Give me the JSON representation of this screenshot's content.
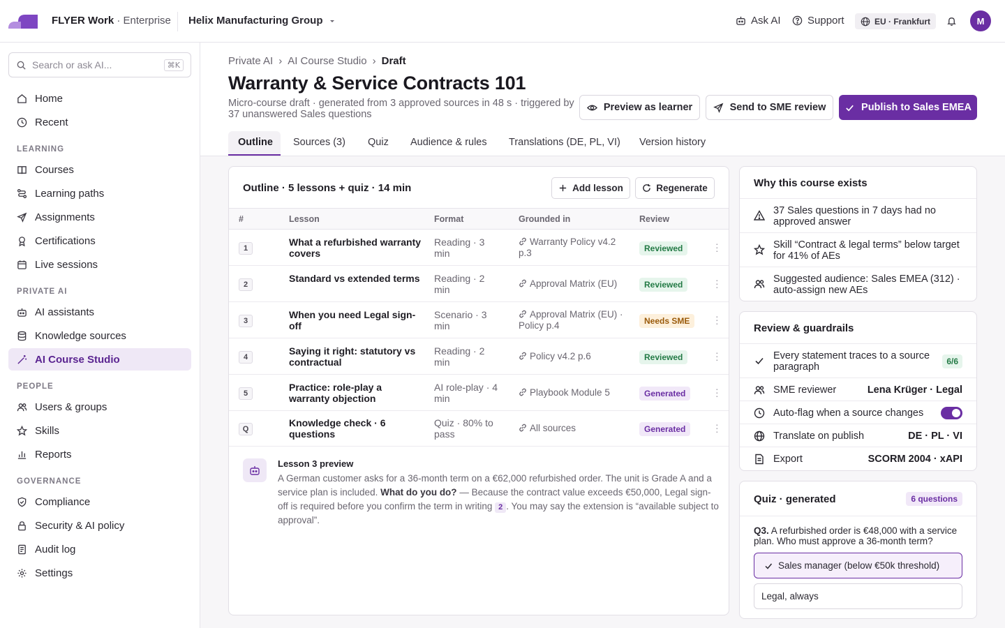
{
  "topbar": {
    "brand_name": "FLYER Work",
    "brand_edition": " · Enterprise",
    "org": "Helix Manufacturing Group",
    "ask_ai": "Ask AI",
    "support": "Support",
    "region": "EU · Frankfurt",
    "avatar": "M"
  },
  "sidebar": {
    "search_placeholder": "Search or ask AI...",
    "search_shortcut": "⌘K",
    "items": {
      "home": "Home",
      "recent": "Recent",
      "section_learning": "LEARNING",
      "courses": "Courses",
      "paths": "Learning paths",
      "assignments": "Assignments",
      "certifications": "Certifications",
      "live": "Live sessions",
      "section_private": "PRIVATE AI",
      "assistants": "AI assistants",
      "knowledge": "Knowledge sources",
      "studio": "AI Course Studio",
      "section_people": "PEOPLE",
      "users": "Users & groups",
      "skills": "Skills",
      "reports": "Reports",
      "section_governance": "GOVERNANCE",
      "compliance": "Compliance",
      "security": "Security & AI policy",
      "audit": "Audit log",
      "settings": "Settings"
    }
  },
  "header": {
    "crumb1": "Private AI",
    "crumb2": "AI Course Studio",
    "crumb3": "Draft",
    "title": "Warranty & Service Contracts 101",
    "subtitle": "Micro-course draft · generated from 3 approved sources in 48 s · triggered by 37 unanswered Sales questions",
    "preview_btn": "Preview as learner",
    "sme_btn": "Send to SME review",
    "publish_btn": "Publish to Sales EMEA"
  },
  "tabs": {
    "outline": "Outline",
    "sources": "Sources (3)",
    "quiz": "Quiz",
    "audience": "Audience & rules",
    "translations": "Translations (DE, PL, VI)",
    "history": "Version history"
  },
  "outline": {
    "title": "Outline · 5 lessons + quiz · 14 min",
    "add_lesson": "Add lesson",
    "regenerate": "Regenerate",
    "columns": {
      "num": "#",
      "lesson": "Lesson",
      "format": "Format",
      "grounded": "Grounded in",
      "review": "Review"
    },
    "rows": [
      {
        "num": "1",
        "lesson": "What a refurbished warranty covers",
        "format": "Reading · 3 min",
        "grounded": "Warranty Policy v4.2 p.3",
        "review": "Reviewed"
      },
      {
        "num": "2",
        "lesson": "Standard vs extended terms",
        "format": "Reading · 2 min",
        "grounded": "Approval Matrix (EU)",
        "review": "Reviewed"
      },
      {
        "num": "3",
        "lesson": "When you need Legal sign-off",
        "format": "Scenario · 3 min",
        "grounded": "Approval Matrix (EU) · Policy p.4",
        "review": "Needs SME"
      },
      {
        "num": "4",
        "lesson": "Saying it right: statutory vs contractual",
        "format": "Reading · 2 min",
        "grounded": "Policy v4.2 p.6",
        "review": "Reviewed"
      },
      {
        "num": "5",
        "lesson": "Practice: role-play a warranty objection",
        "format": "AI role-play · 4 min",
        "grounded": "Playbook Module 5",
        "review": "Generated"
      },
      {
        "num": "Q",
        "lesson": "Knowledge check · 6 questions",
        "format": "Quiz · 80% to pass",
        "grounded": "All sources",
        "review": "Generated"
      }
    ],
    "preview_title": "Lesson 3 preview",
    "preview_part1": "A German customer asks for a 36-month term on a €62,000 refurbished order. The unit is Grade A and a service plan is included. ",
    "preview_bold": "What do you do?",
    "preview_part2": " — Because the contract value exceeds €50,000, Legal sign-off is required before you confirm the term in writing ",
    "preview_cite": "2",
    "preview_part3": ". You may say the extension is “available subject to approval”."
  },
  "why": {
    "title": "Why this course exists",
    "item1": "37 Sales questions in 7 days had no approved answer",
    "item2": "Skill “Contract & legal terms” below target for 41% of AEs",
    "item3": "Suggested audience: Sales EMEA (312) · auto-assign new AEs"
  },
  "review": {
    "title": "Review & guardrails",
    "trace": "Every statement traces to a source paragraph",
    "trace_count": "6/6",
    "sme_label": "SME reviewer",
    "sme_value": "Lena Krüger · Legal",
    "autoflag": "Auto-flag when a source changes",
    "autoflag_on": true,
    "translate_label": "Translate on publish",
    "translate_value": "DE · PL · VI",
    "export_label": "Export",
    "export_value": "SCORM 2004 · xAPI"
  },
  "quiz": {
    "title": "Quiz · generated",
    "badge": "6 questions",
    "qnum": "Q3.",
    "question": " A refurbished order is €48,000 with a service plan. Who must approve a 36-month term?",
    "opt1": "Sales manager (below €50k threshold)",
    "opt2": "Legal, always"
  },
  "colors": {
    "accent": "#6a2ea3",
    "reviewed": "#237a45",
    "needs_sme": "#9a5a0a"
  }
}
